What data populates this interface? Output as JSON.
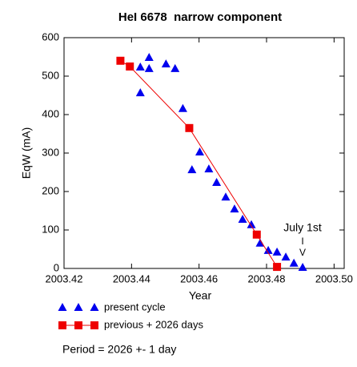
{
  "chart_data": {
    "type": "scatter",
    "title": "HeI 6678  narrow component",
    "x_label": "Year",
    "y_label": "EqW (mA)",
    "xlim": [
      2003.42,
      2003.503
    ],
    "ylim": [
      0,
      600
    ],
    "xticks": [
      2003.42,
      2003.44,
      2003.46,
      2003.48,
      {
        "value": 2003.5,
        "label": "2003.50"
      }
    ],
    "yticks": [
      0,
      100,
      200,
      300,
      400,
      500,
      600
    ],
    "series": [
      {
        "name": "present cycle",
        "color": "#0000ee",
        "marker": "triangle",
        "line": false,
        "x": [
          2003.4426,
          2003.4426,
          2003.4452,
          2003.4452,
          2003.4502,
          2003.4529,
          2003.4552,
          2003.4579,
          2003.4602,
          2003.4629,
          2003.4652,
          2003.4679,
          2003.4705,
          2003.4729,
          2003.4755,
          2003.4781,
          2003.4805,
          2003.4831,
          2003.4857,
          2003.4881,
          2003.4907
        ],
        "values": [
          523,
          456,
          548,
          519,
          531,
          519,
          415,
          256,
          302,
          258,
          223,
          185,
          154,
          127,
          113,
          65,
          46,
          42,
          29,
          13,
          2
        ]
      },
      {
        "name": "previous + 2026 days",
        "color": "#ee0000",
        "marker": "square",
        "line": true,
        "x": [
          2003.4367,
          2003.4395,
          2003.4571,
          2003.4771,
          2003.4831
        ],
        "values": [
          540,
          525,
          365,
          88,
          4
        ]
      }
    ],
    "annotations": [
      "July 1st",
      "I",
      "V"
    ],
    "note": "Period = 2026 +- 1 day"
  }
}
